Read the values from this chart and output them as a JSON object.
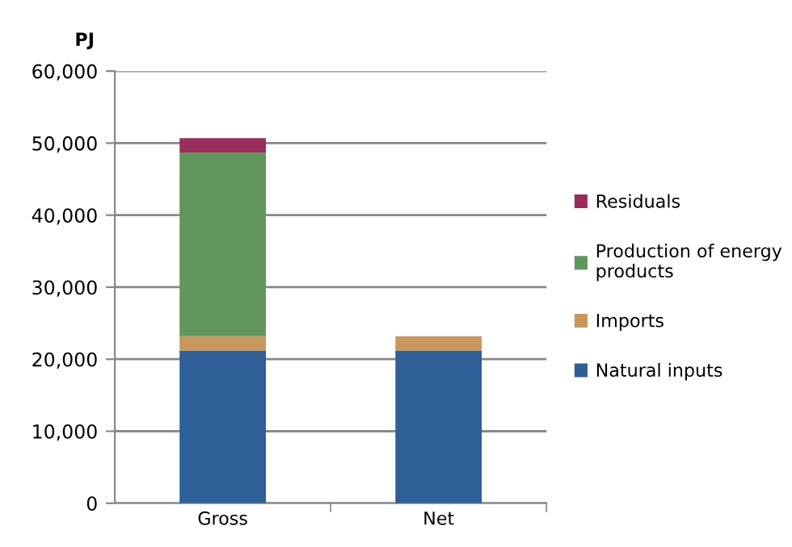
{
  "chart_data": {
    "type": "bar",
    "stacked": true,
    "ylabel": "PJ",
    "categories": [
      "Gross",
      "Net"
    ],
    "series": [
      {
        "name": "Natural inputs",
        "color": "#2e5f96",
        "values": [
          21200,
          21200
        ]
      },
      {
        "name": "Imports",
        "color": "#c9965e",
        "values": [
          2000,
          2000
        ]
      },
      {
        "name": "Production of energy\nproducts",
        "color": "#61975c",
        "values": [
          25500,
          null
        ]
      },
      {
        "name": "Residuals",
        "color": "#9b2d5d",
        "values": [
          2000,
          null
        ]
      }
    ],
    "ylim": [
      0,
      60000
    ],
    "yticks": [
      0,
      {
        "value": 10000,
        "label": "10,000"
      },
      {
        "value": 20000,
        "label": "20,000"
      },
      {
        "value": 30000,
        "label": "30,000"
      },
      {
        "value": 40000,
        "label": "40,000"
      },
      {
        "value": 50000,
        "label": "50,000"
      },
      {
        "value": 60000,
        "label": "60,000"
      }
    ],
    "grid": "y",
    "legend": "right"
  }
}
